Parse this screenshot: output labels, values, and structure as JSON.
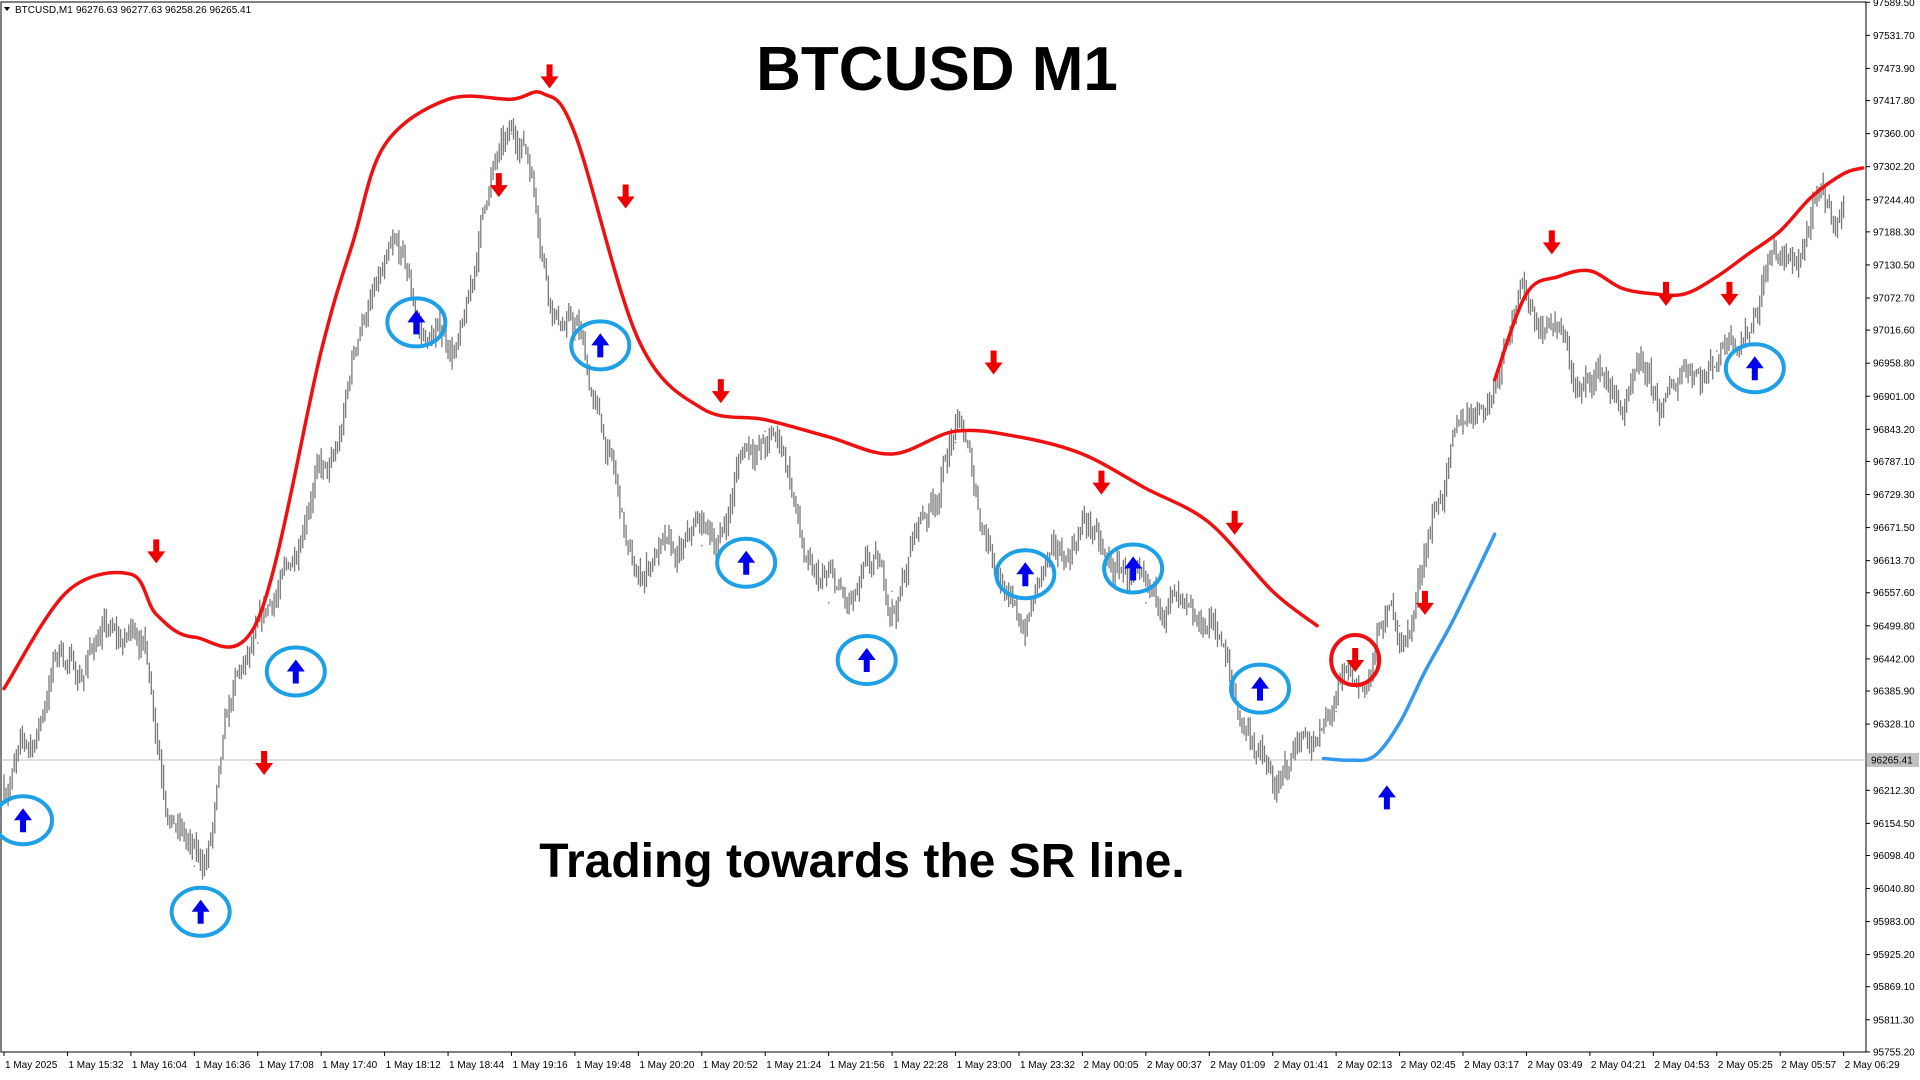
{
  "header": {
    "symbol": "BTCUSD,M1",
    "ohlc": "96276.63 96277.63 96258.26 96265.41",
    "menu_icon": "triangle-down-icon"
  },
  "overlay": {
    "title": "BTCUSD M1",
    "note": "Trading towards the SR line."
  },
  "colors": {
    "price": "#7a7a7a",
    "sr_line": "#ee1111",
    "curve_line": "#3399ee",
    "arrow_up": "#0000ee",
    "arrow_down": "#ee0000",
    "circle_blue": "#1ea0e6",
    "circle_red": "#ee1111"
  },
  "chart_data": {
    "type": "line",
    "title": "BTCUSD M1",
    "ylim": [
      95755,
      97590
    ],
    "y_ticks": [
      "97589.50",
      "97531.70",
      "97473.90",
      "97417.80",
      "97360.00",
      "97302.20",
      "97244.40",
      "97188.30",
      "97130.50",
      "97072.70",
      "97016.60",
      "96958.80",
      "96901.00",
      "96843.20",
      "96787.10",
      "96729.30",
      "96671.50",
      "96613.70",
      "96557.60",
      "96499.80",
      "96442.00",
      "96385.90",
      "96328.10",
      "96212.30",
      "96154.50",
      "96098.40",
      "96040.80",
      "95983.00",
      "95925.20",
      "95869.10",
      "95811.30",
      "95755.20"
    ],
    "current_price": "96265.41",
    "x_ticks": [
      "1 May 2025",
      "1 May 15:32",
      "1 May 16:04",
      "1 May 16:36",
      "1 May 17:08",
      "1 May 17:40",
      "1 May 18:12",
      "1 May 18:44",
      "1 May 19:16",
      "1 May 19:48",
      "1 May 20:20",
      "1 May 20:52",
      "1 May 21:24",
      "1 May 21:56",
      "1 May 22:28",
      "1 May 23:00",
      "1 May 23:32",
      "2 May 00:05",
      "2 May 00:37",
      "2 May 01:09",
      "2 May 01:41",
      "2 May 02:13",
      "2 May 02:45",
      "2 May 03:17",
      "2 May 03:49",
      "2 May 04:21",
      "2 May 04:53",
      "2 May 05:25",
      "2 May 05:57",
      "2 May 06:29"
    ],
    "series": [
      {
        "role": "price",
        "x": [
          0,
          1,
          2,
          3,
          4,
          5,
          6,
          7,
          8,
          9,
          10,
          11,
          12,
          13,
          14,
          15,
          16,
          17,
          18,
          19,
          20,
          21,
          22,
          23,
          24,
          25,
          26,
          27,
          28,
          29
        ],
        "y": [
          96220,
          96440,
          96490,
          96080,
          96470,
          96760,
          97120,
          96980,
          97360,
          97000,
          96600,
          96640,
          96840,
          96540,
          96560,
          96820,
          96520,
          96660,
          96540,
          96480,
          96230,
          96350,
          96500,
          96840,
          97080,
          96920,
          96890,
          96980,
          97140,
          97240
        ]
      },
      {
        "role": "sr_line",
        "segments": [
          {
            "x": [
              0,
              1,
              2,
              2.4,
              3,
              4,
              5,
              5.5,
              6,
              7,
              8,
              8.5,
              9,
              10,
              11,
              12,
              13,
              14,
              15,
              16,
              17,
              18,
              19,
              20,
              20.7
            ],
            "y": [
              96390,
              96560,
              96590,
              96520,
              96480,
              96510,
              96980,
              97170,
              97340,
              97420,
              97420,
              97430,
              97360,
              97000,
              96880,
              96860,
              96830,
              96800,
              96840,
              96830,
              96800,
              96740,
              96680,
              96560,
              96500
            ]
          },
          {
            "x": [
              23.5,
              24,
              24.5,
              25,
              25.5,
              26,
              26.5,
              27,
              27.5,
              28,
              28.5,
              29,
              29.3
            ],
            "y": [
              96930,
              97080,
              97110,
              97120,
              97090,
              97080,
              97080,
              97110,
              97150,
              97190,
              97250,
              97290,
              97300
            ]
          }
        ]
      },
      {
        "role": "curve_line",
        "x": [
          20.8,
          21.2,
          21.6,
          22,
          22.4,
          22.8,
          23.2,
          23.5
        ],
        "y": [
          96268,
          96265,
          96272,
          96330,
          96420,
          96500,
          96590,
          96660
        ]
      }
    ],
    "signals_up": [
      {
        "x": 0.3,
        "y": 96160,
        "circled": true
      },
      {
        "x": 3.1,
        "y": 96000,
        "circled": true
      },
      {
        "x": 4.6,
        "y": 96420,
        "circled": true
      },
      {
        "x": 6.5,
        "y": 97030,
        "circled": true
      },
      {
        "x": 9.4,
        "y": 96990,
        "circled": true
      },
      {
        "x": 11.7,
        "y": 96610,
        "circled": true
      },
      {
        "x": 13.6,
        "y": 96440,
        "circled": true
      },
      {
        "x": 16.1,
        "y": 96590,
        "circled": true
      },
      {
        "x": 17.8,
        "y": 96600,
        "circled": true
      },
      {
        "x": 19.8,
        "y": 96390,
        "circled": true
      },
      {
        "x": 21.8,
        "y": 96200,
        "circled": false
      },
      {
        "x": 27.6,
        "y": 96950,
        "circled": true
      }
    ],
    "signals_down": [
      {
        "x": 2.4,
        "y": 96630,
        "circled": false
      },
      {
        "x": 4.1,
        "y": 96260,
        "circled": false
      },
      {
        "x": 7.8,
        "y": 97270,
        "circled": false
      },
      {
        "x": 8.6,
        "y": 97460,
        "circled": false
      },
      {
        "x": 9.8,
        "y": 97250,
        "circled": false
      },
      {
        "x": 11.3,
        "y": 96910,
        "circled": false
      },
      {
        "x": 15.6,
        "y": 96960,
        "circled": false
      },
      {
        "x": 17.3,
        "y": 96750,
        "circled": false
      },
      {
        "x": 19.4,
        "y": 96680,
        "circled": false
      },
      {
        "x": 21.3,
        "y": 96440,
        "circled": true
      },
      {
        "x": 22.4,
        "y": 96540,
        "circled": false
      },
      {
        "x": 24.4,
        "y": 97170,
        "circled": false
      },
      {
        "x": 26.2,
        "y": 97080,
        "circled": false
      },
      {
        "x": 27.2,
        "y": 97080,
        "circled": false
      }
    ]
  }
}
